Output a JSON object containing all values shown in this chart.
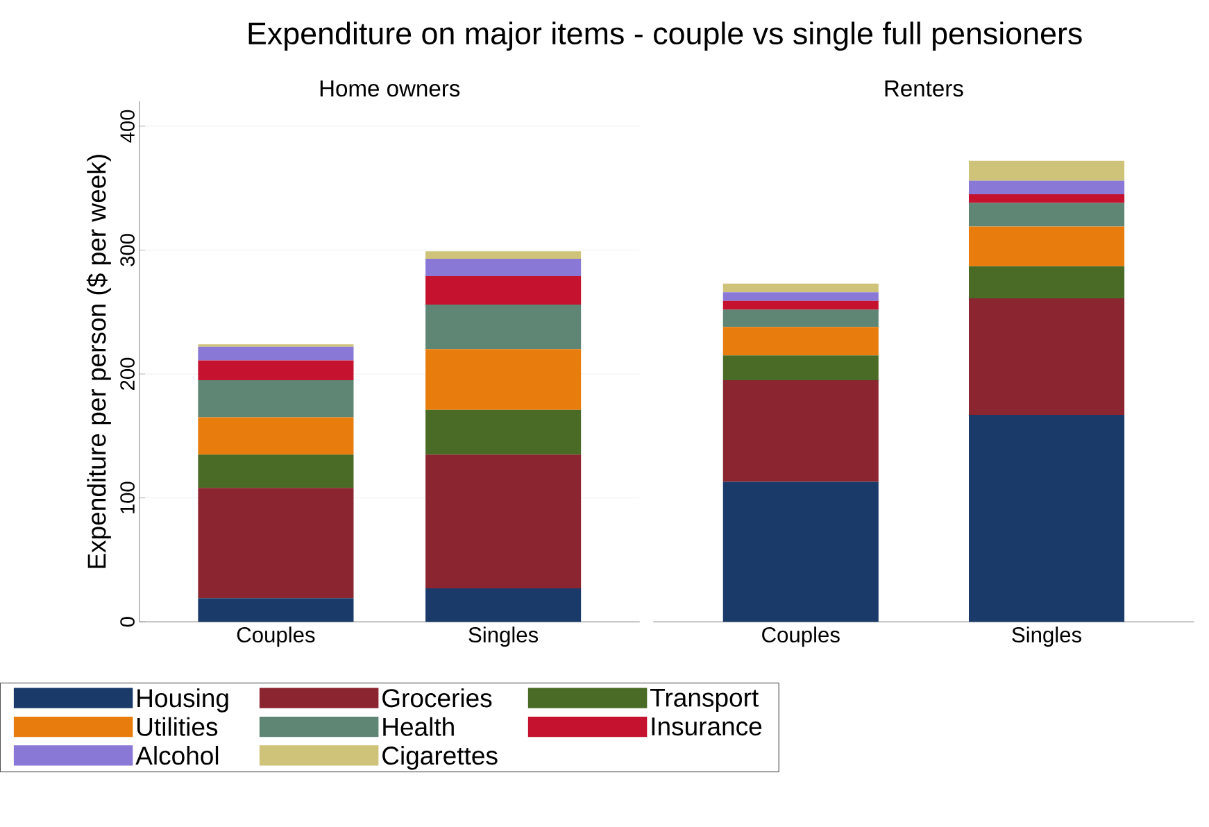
{
  "chart_data": [
    {
      "type": "bar",
      "stacked": true,
      "title": "Expenditure on major items - couple vs single full pensioners",
      "subtitle": "Home owners",
      "ylabel": "Expenditure per person ($ per week)",
      "categories": [
        "Couples",
        "Singles"
      ],
      "ylim": [
        0,
        420
      ],
      "yticks": [
        0,
        100,
        200,
        300,
        400
      ],
      "grid": "y",
      "legend": "bottom",
      "series": [
        {
          "name": "Housing",
          "color": "#1a3a6a",
          "values": [
            19,
            27
          ]
        },
        {
          "name": "Groceries",
          "color": "#8b2530",
          "values": [
            89,
            108
          ]
        },
        {
          "name": "Transport",
          "color": "#4a6b26",
          "values": [
            27,
            36
          ]
        },
        {
          "name": "Utilities",
          "color": "#e87c0c",
          "values": [
            30,
            49
          ]
        },
        {
          "name": "Health",
          "color": "#5f8575",
          "values": [
            30,
            36
          ]
        },
        {
          "name": "Insurance",
          "color": "#c4122f",
          "values": [
            16,
            23
          ]
        },
        {
          "name": "Alcohol",
          "color": "#8a78d6",
          "values": [
            11,
            14
          ]
        },
        {
          "name": "Cigarettes",
          "color": "#cfc37a",
          "values": [
            2,
            6
          ]
        }
      ]
    },
    {
      "type": "bar",
      "stacked": true,
      "subtitle": "Renters",
      "categories": [
        "Couples",
        "Singles"
      ],
      "ylim": [
        0,
        400
      ],
      "yticks": [
        0,
        100,
        200,
        300,
        400
      ],
      "grid": "y",
      "tick_labels": "x",
      "series": [
        {
          "color": "#1a3a6a",
          "values": [
            113,
            167
          ]
        },
        {
          "color": "#8b2530",
          "values": [
            82,
            94
          ]
        },
        {
          "color": "#4a6b26",
          "values": [
            20,
            26
          ]
        },
        {
          "color": "#e87c0c",
          "values": [
            23,
            32
          ]
        },
        {
          "color": "#5f8575",
          "values": [
            14,
            19
          ]
        },
        {
          "color": "#c4122f",
          "values": [
            7,
            7
          ]
        },
        {
          "color": "#8a78d6",
          "values": [
            7,
            11
          ]
        },
        {
          "color": "#cfc37a",
          "values": [
            7,
            16
          ]
        }
      ]
    }
  ]
}
